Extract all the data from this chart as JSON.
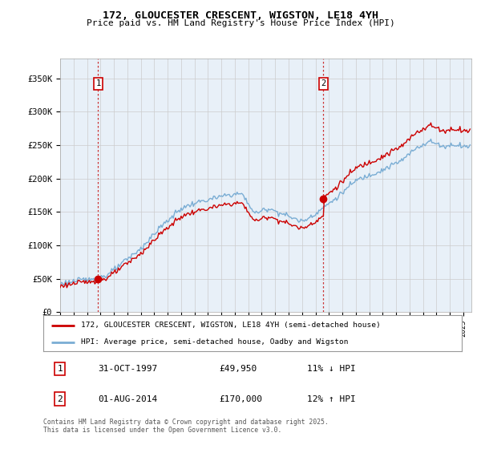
{
  "title1": "172, GLOUCESTER CRESCENT, WIGSTON, LE18 4YH",
  "title2": "Price paid vs. HM Land Registry's House Price Index (HPI)",
  "ylim": [
    0,
    380000
  ],
  "yticks": [
    0,
    50000,
    100000,
    150000,
    200000,
    250000,
    300000,
    350000
  ],
  "ytick_labels": [
    "£0",
    "£50K",
    "£100K",
    "£150K",
    "£200K",
    "£250K",
    "£300K",
    "£350K"
  ],
  "xlim_start": 1995,
  "xlim_end": 2025.6,
  "sale1_date": 1997.83,
  "sale1_price": 49950,
  "sale2_date": 2014.59,
  "sale2_price": 170000,
  "legend_label1": "172, GLOUCESTER CRESCENT, WIGSTON, LE18 4YH (semi-detached house)",
  "legend_label2": "HPI: Average price, semi-detached house, Oadby and Wigston",
  "annotation1_date": "31-OCT-1997",
  "annotation1_price": "£49,950",
  "annotation1_hpi": "11% ↓ HPI",
  "annotation2_date": "01-AUG-2014",
  "annotation2_price": "£170,000",
  "annotation2_hpi": "12% ↑ HPI",
  "footer": "Contains HM Land Registry data © Crown copyright and database right 2025.\nThis data is licensed under the Open Government Licence v3.0.",
  "line_color_price": "#cc0000",
  "line_color_hpi": "#7aadd4",
  "vline_color": "#cc3333",
  "chart_bg": "#e8f0f8",
  "background_color": "#ffffff",
  "grid_color": "#cccccc",
  "box_color": "#cc0000"
}
